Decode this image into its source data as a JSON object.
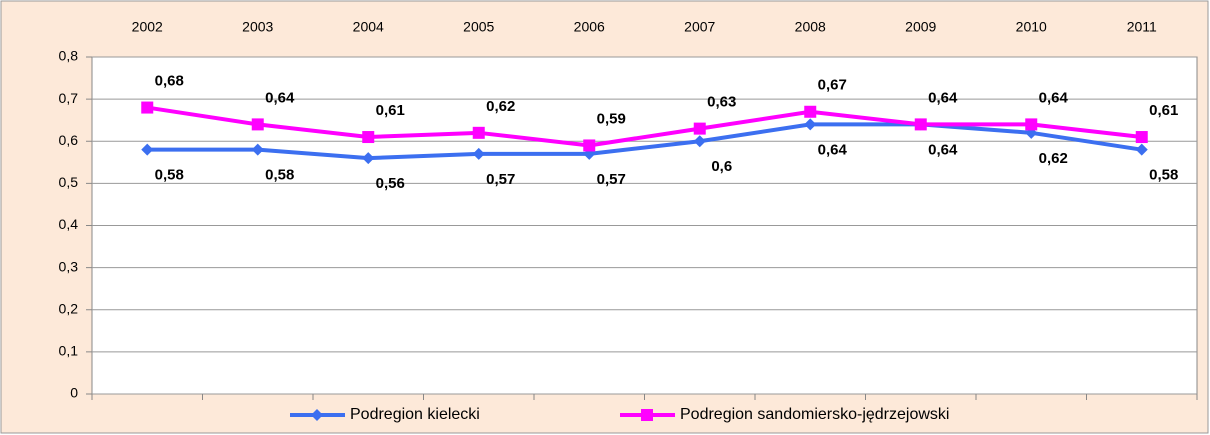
{
  "chart_data": {
    "type": "line",
    "categories": [
      "2002",
      "2003",
      "2004",
      "2005",
      "2006",
      "2007",
      "2008",
      "2009",
      "2010",
      "2011"
    ],
    "series": [
      {
        "name": "Podregion kielecki",
        "color": "#3c6ff0",
        "marker": "diamond",
        "values": [
          0.58,
          0.58,
          0.56,
          0.57,
          0.57,
          0.6,
          0.64,
          0.64,
          0.62,
          0.58
        ],
        "value_labels": [
          "0,58",
          "0,58",
          "0,56",
          "0,57",
          "0,57",
          "0,6",
          "0,64",
          "0,64",
          "0,62",
          "0,58"
        ]
      },
      {
        "name": "Podregion sandomiersko-jędrzejowski",
        "color": "#ff00ff",
        "marker": "square",
        "values": [
          0.68,
          0.64,
          0.61,
          0.62,
          0.59,
          0.63,
          0.67,
          0.64,
          0.64,
          0.61
        ],
        "value_labels": [
          "0,68",
          "0,64",
          "0,61",
          "0,62",
          "0,59",
          "0,63",
          "0,67",
          "0,64",
          "0,64",
          "0,61"
        ]
      }
    ],
    "ylim": [
      0,
      0.8
    ],
    "yticks": [
      0,
      {
        "value": 0.1,
        "label": "0,1"
      },
      {
        "value": 0.2,
        "label": "0,2"
      },
      {
        "value": 0.3,
        "label": "0,3"
      },
      {
        "value": 0.4,
        "label": "0,4"
      },
      {
        "value": 0.5,
        "label": "0,5"
      },
      {
        "value": 0.6,
        "label": "0,6"
      },
      {
        "value": 0.7,
        "label": "0,7"
      },
      {
        "value": 0.8,
        "label": "0,8"
      }
    ],
    "grid": true,
    "legend": "bottom"
  }
}
